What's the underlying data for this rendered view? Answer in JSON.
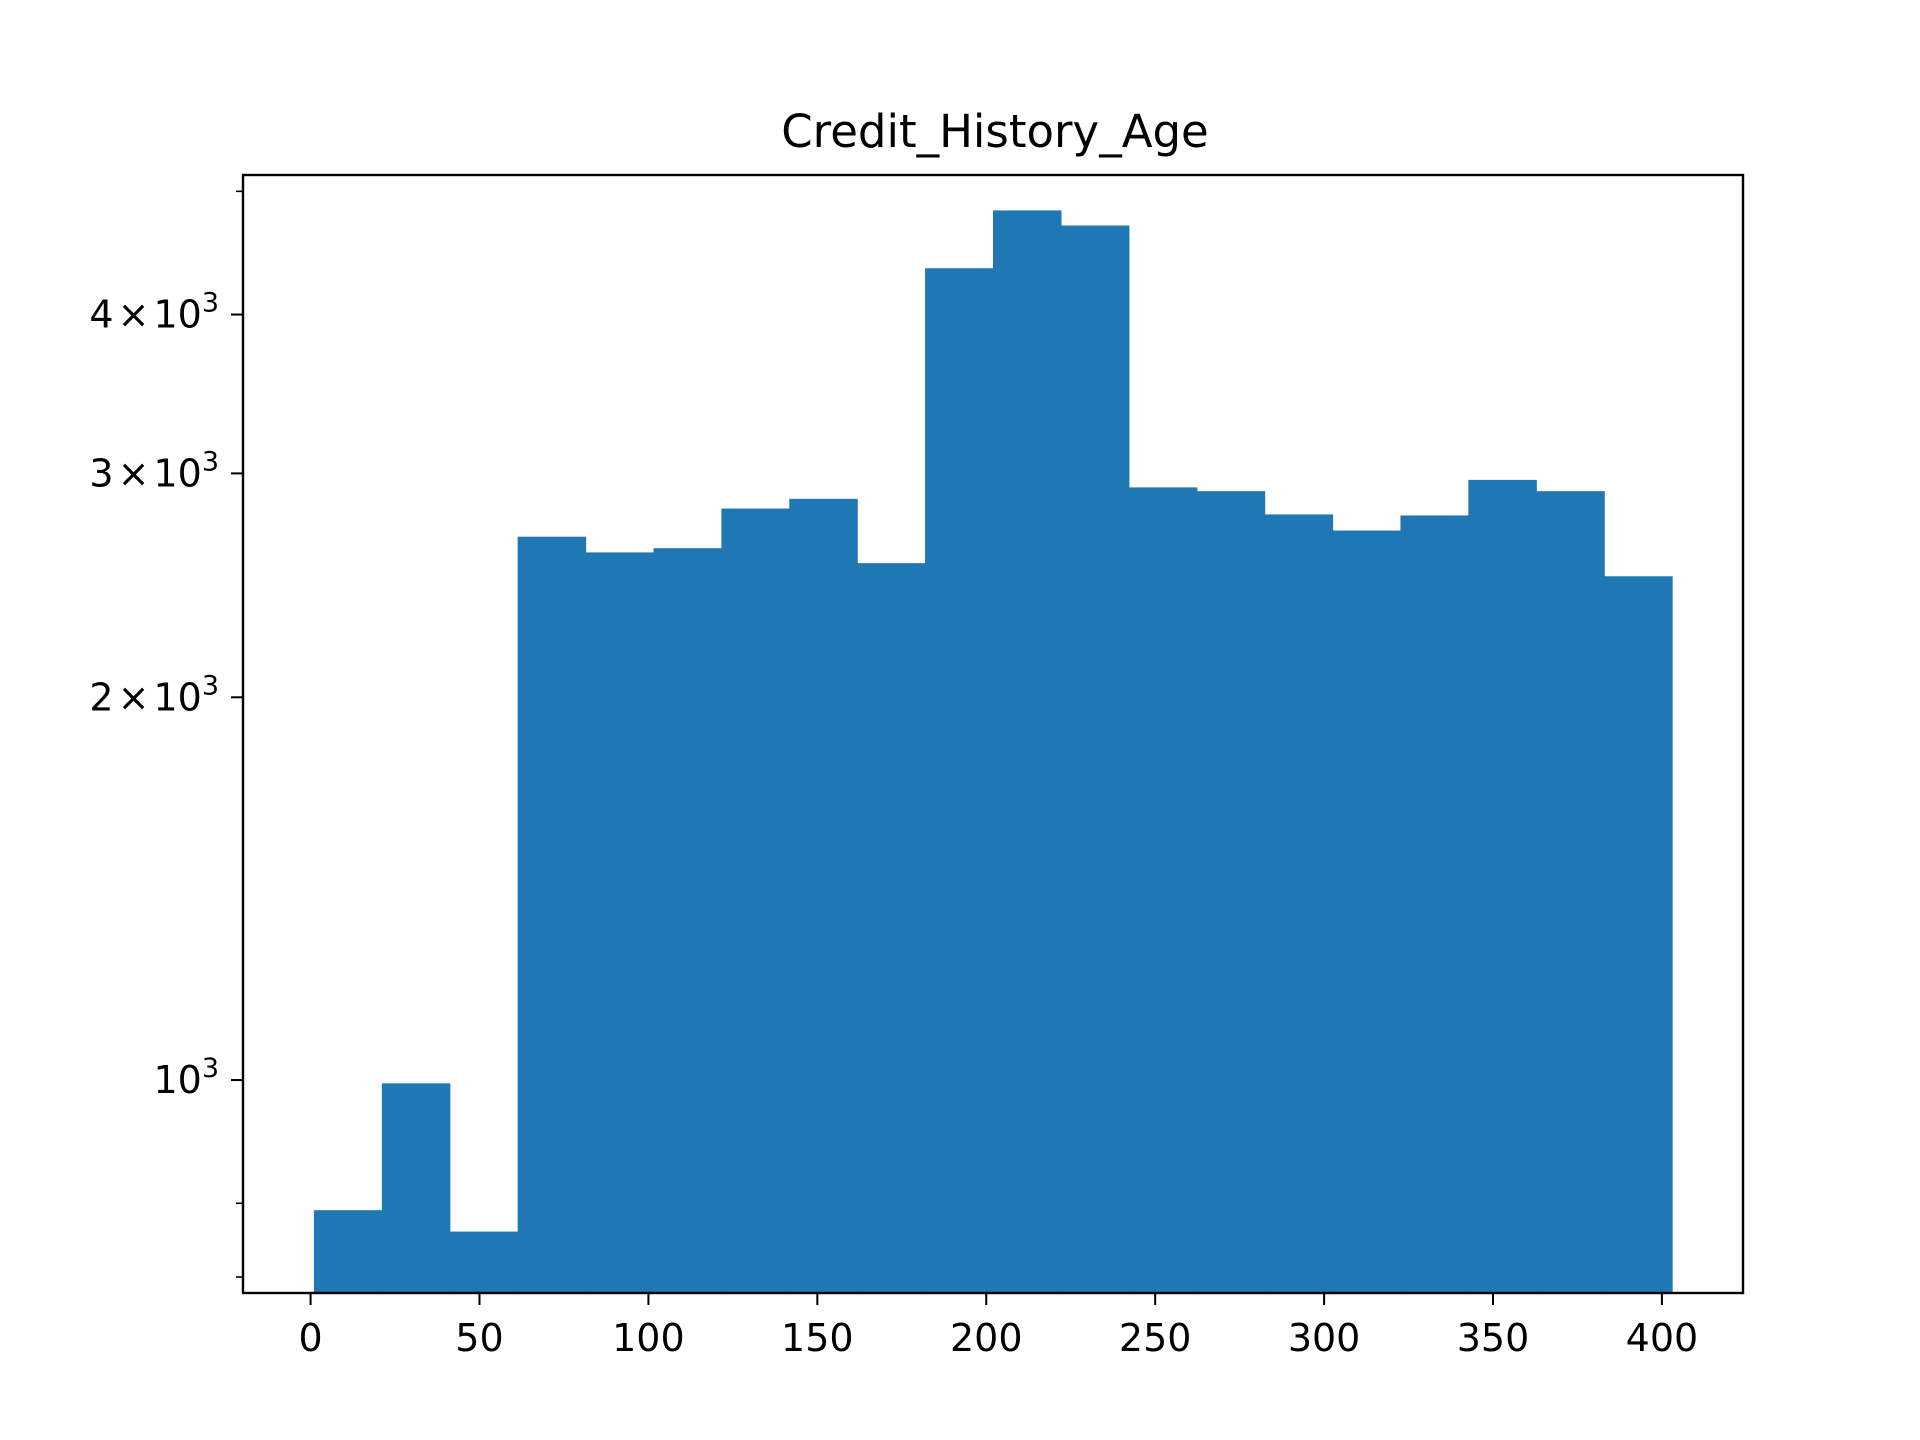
{
  "chart_data": {
    "type": "bar",
    "title": "Credit_History_Age",
    "xlabel": "",
    "ylabel": "",
    "y_scale": "log",
    "xlim": [
      -20,
      424
    ],
    "ylim": [
      680,
      5150
    ],
    "grid": false,
    "legend": "none",
    "bar_color": "#1f77b4",
    "bins": [
      {
        "x0": 1,
        "x1": 21.1,
        "value": 790
      },
      {
        "x0": 21.1,
        "x1": 41.2,
        "value": 994
      },
      {
        "x0": 41.2,
        "x1": 61.3,
        "value": 760
      },
      {
        "x0": 61.3,
        "x1": 81.4,
        "value": 2675
      },
      {
        "x0": 81.4,
        "x1": 101.5,
        "value": 2600
      },
      {
        "x0": 101.5,
        "x1": 121.6,
        "value": 2620
      },
      {
        "x0": 121.6,
        "x1": 141.7,
        "value": 2815
      },
      {
        "x0": 141.7,
        "x1": 161.8,
        "value": 2865
      },
      {
        "x0": 161.8,
        "x1": 181.9,
        "value": 2550
      },
      {
        "x0": 181.9,
        "x1": 202.0,
        "value": 4350
      },
      {
        "x0": 202.0,
        "x1": 222.1,
        "value": 4830
      },
      {
        "x0": 222.1,
        "x1": 242.2,
        "value": 4700
      },
      {
        "x0": 242.2,
        "x1": 262.3,
        "value": 2925
      },
      {
        "x0": 262.3,
        "x1": 282.4,
        "value": 2905
      },
      {
        "x0": 282.4,
        "x1": 302.5,
        "value": 2785
      },
      {
        "x0": 302.5,
        "x1": 322.6,
        "value": 2705
      },
      {
        "x0": 322.6,
        "x1": 342.7,
        "value": 2780
      },
      {
        "x0": 342.7,
        "x1": 362.8,
        "value": 2965
      },
      {
        "x0": 362.8,
        "x1": 382.9,
        "value": 2905
      },
      {
        "x0": 382.9,
        "x1": 403.0,
        "value": 2490
      }
    ],
    "x_ticks": [
      0,
      50,
      100,
      150,
      200,
      250,
      300,
      350,
      400
    ],
    "x_tick_labels": [
      "0",
      "50",
      "100",
      "150",
      "200",
      "250",
      "300",
      "350",
      "400"
    ],
    "y_major_ticks": [
      {
        "value": 1000,
        "base": "10",
        "mantissa": "",
        "exp": "3"
      },
      {
        "value": 2000,
        "base": "10",
        "mantissa": "2",
        "exp": "3"
      },
      {
        "value": 3000,
        "base": "10",
        "mantissa": "3",
        "exp": "3"
      },
      {
        "value": 4000,
        "base": "10",
        "mantissa": "4",
        "exp": "3"
      }
    ],
    "y_minor_ticks": [
      700,
      800,
      5000
    ]
  }
}
